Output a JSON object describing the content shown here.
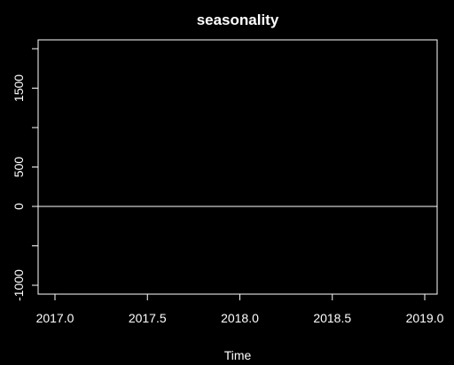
{
  "chart_data": {
    "type": "line",
    "title": "seasonality",
    "xlabel": "Time",
    "ylabel": "",
    "xlim": [
      2017.0,
      2019.0
    ],
    "ylim": [
      -1000,
      2000
    ],
    "x_ticks": [
      2017.0,
      2017.5,
      2018.0,
      2018.5,
      2019.0
    ],
    "x_tick_labels": [
      "2017.0",
      "2017.5",
      "2018.0",
      "2018.5",
      "2019.0"
    ],
    "y_ticks": [
      -1000,
      -500,
      0,
      500,
      1000,
      1500,
      2000
    ],
    "y_tick_labels": [
      "-1000",
      "",
      "0",
      "500",
      "",
      "1500",
      ""
    ],
    "grid": false,
    "series": [
      {
        "x": [
          2017.0,
          2019.0
        ],
        "values": [
          0,
          0
        ]
      }
    ],
    "colors": {
      "background": "#000000",
      "foreground": "#ffffff",
      "line": "#ffffff"
    }
  }
}
